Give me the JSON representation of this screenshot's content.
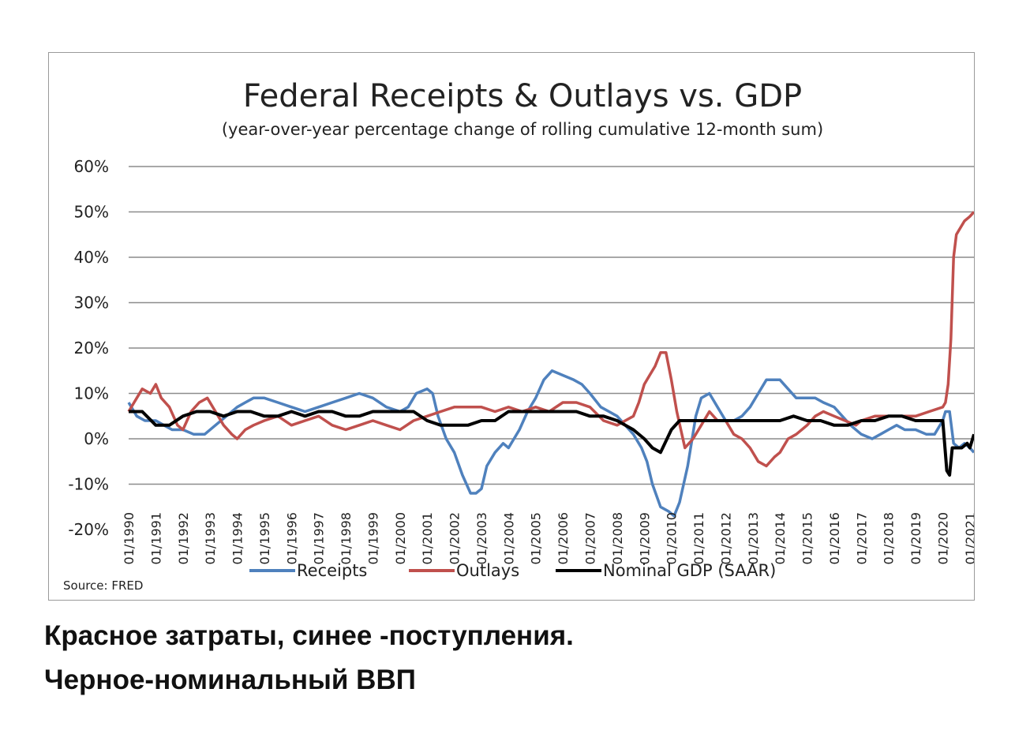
{
  "chart_data": {
    "type": "line",
    "title": "Federal Receipts & Outlays vs. GDP",
    "subtitle": "(year-over-year percentage change of rolling cumulative 12-month sum)",
    "ylim": [
      -20,
      60
    ],
    "yticks": [
      -20,
      -10,
      0,
      10,
      20,
      30,
      40,
      50,
      60
    ],
    "ytick_labels": [
      "-20%",
      "-10%",
      "0%",
      "10%",
      "20%",
      "30%",
      "40%",
      "50%",
      "60%"
    ],
    "xlim": [
      1990,
      2021.15
    ],
    "xtick_labels": [
      "01/1990",
      "01/1991",
      "01/1992",
      "01/1993",
      "01/1994",
      "01/1995",
      "01/1996",
      "01/1997",
      "01/1998",
      "01/1999",
      "01/2000",
      "01/2001",
      "01/2002",
      "01/2003",
      "01/2004",
      "01/2005",
      "01/2006",
      "01/2007",
      "01/2008",
      "01/2009",
      "01/2010",
      "01/2011",
      "01/2012",
      "01/2013",
      "01/2014",
      "01/2015",
      "01/2016",
      "01/2017",
      "01/2018",
      "01/2019",
      "01/2020",
      "01/2021"
    ],
    "grid": true,
    "legend_position": "bottom",
    "series": [
      {
        "name": "Receipts",
        "color": "#4f81bd",
        "x": [
          1990,
          1990.3,
          1990.6,
          1991,
          1991.3,
          1991.6,
          1992,
          1992.4,
          1992.8,
          1993.2,
          1993.6,
          1994,
          1994.3,
          1994.6,
          1995,
          1995.5,
          1996,
          1996.5,
          1997,
          1997.5,
          1998,
          1998.5,
          1999,
          1999.5,
          2000,
          2000.3,
          2000.6,
          2001,
          2001.2,
          2001.4,
          2001.7,
          2002,
          2002.3,
          2002.6,
          2002.8,
          2003,
          2003.2,
          2003.5,
          2003.8,
          2004,
          2004.4,
          2004.7,
          2005,
          2005.3,
          2005.6,
          2006,
          2006.4,
          2006.7,
          2007,
          2007.4,
          2007.7,
          2008,
          2008.3,
          2008.6,
          2008.9,
          2009.1,
          2009.3,
          2009.6,
          2009.9,
          2010.1,
          2010.3,
          2010.6,
          2010.9,
          2011.1,
          2011.4,
          2011.7,
          2012,
          2012.3,
          2012.6,
          2012.9,
          2013.2,
          2013.5,
          2013.8,
          2014,
          2014.3,
          2014.6,
          2015,
          2015.3,
          2015.6,
          2016,
          2016.3,
          2016.6,
          2017,
          2017.4,
          2017.7,
          2018,
          2018.3,
          2018.6,
          2019,
          2019.4,
          2019.7,
          2020,
          2020.1,
          2020.25,
          2020.4,
          2020.6,
          2020.8,
          2021,
          2021.15
        ],
        "y": [
          8,
          5,
          4,
          4,
          3,
          2,
          2,
          1,
          1,
          3,
          5,
          7,
          8,
          9,
          9,
          8,
          7,
          6,
          7,
          8,
          9,
          10,
          9,
          7,
          6,
          7,
          10,
          11,
          10,
          5,
          0,
          -3,
          -8,
          -12,
          -12,
          -11,
          -6,
          -3,
          -1,
          -2,
          2,
          6,
          9,
          13,
          15,
          14,
          13,
          12,
          10,
          7,
          6,
          5,
          3,
          1,
          -2,
          -5,
          -10,
          -15,
          -16,
          -17,
          -14,
          -6,
          5,
          9,
          10,
          7,
          4,
          4,
          5,
          7,
          10,
          13,
          13,
          13,
          11,
          9,
          9,
          9,
          8,
          7,
          5,
          3,
          1,
          0,
          1,
          2,
          3,
          2,
          2,
          1,
          1,
          4,
          6,
          6,
          -1,
          -2,
          -1,
          -2,
          -3
        ]
      },
      {
        "name": "Outlays",
        "color": "#c0504d",
        "x": [
          1990,
          1990.2,
          1990.5,
          1990.8,
          1991,
          1991.2,
          1991.5,
          1991.8,
          1992,
          1992.3,
          1992.6,
          1992.9,
          1993.2,
          1993.5,
          1993.8,
          1994,
          1994.3,
          1994.6,
          1995,
          1995.5,
          1996,
          1996.5,
          1997,
          1997.5,
          1998,
          1998.5,
          1999,
          1999.5,
          2000,
          2000.5,
          2001,
          2001.5,
          2002,
          2002.5,
          2003,
          2003.5,
          2004,
          2004.5,
          2005,
          2005.5,
          2006,
          2006.5,
          2007,
          2007.5,
          2008,
          2008.3,
          2008.6,
          2008.8,
          2009,
          2009.2,
          2009.4,
          2009.6,
          2009.8,
          2010,
          2010.2,
          2010.5,
          2010.8,
          2011.1,
          2011.4,
          2011.7,
          2012,
          2012.3,
          2012.6,
          2012.9,
          2013.2,
          2013.5,
          2013.8,
          2014,
          2014.3,
          2014.6,
          2015,
          2015.3,
          2015.6,
          2016,
          2016.4,
          2016.8,
          2017,
          2017.5,
          2018,
          2018.5,
          2019,
          2019.5,
          2020,
          2020.1,
          2020.2,
          2020.3,
          2020.4,
          2020.5,
          2020.6,
          2020.8,
          2021,
          2021.15
        ],
        "y": [
          6,
          8,
          11,
          10,
          12,
          9,
          7,
          3,
          2,
          6,
          8,
          9,
          6,
          3,
          1,
          0,
          2,
          3,
          4,
          5,
          3,
          4,
          5,
          3,
          2,
          3,
          4,
          3,
          2,
          4,
          5,
          6,
          7,
          7,
          7,
          6,
          7,
          6,
          7,
          6,
          8,
          8,
          7,
          4,
          3,
          4,
          5,
          8,
          12,
          14,
          16,
          19,
          19,
          13,
          6,
          -2,
          0,
          3,
          6,
          4,
          4,
          1,
          0,
          -2,
          -5,
          -6,
          -4,
          -3,
          0,
          1,
          3,
          5,
          6,
          5,
          4,
          3,
          4,
          5,
          5,
          5,
          5,
          6,
          7,
          8,
          12,
          22,
          40,
          45,
          46,
          48,
          49,
          50
        ]
      },
      {
        "name": "Nominal GDP (SAAR)",
        "color": "#000000",
        "x": [
          1990,
          1990.5,
          1991,
          1991.5,
          1992,
          1992.5,
          1993,
          1993.5,
          1994,
          1994.5,
          1995,
          1995.5,
          1996,
          1996.5,
          1997,
          1997.5,
          1998,
          1998.5,
          1999,
          1999.5,
          2000,
          2000.5,
          2001,
          2001.5,
          2002,
          2002.5,
          2003,
          2003.5,
          2004,
          2004.5,
          2005,
          2005.5,
          2006,
          2006.5,
          2007,
          2007.5,
          2008,
          2008.3,
          2008.6,
          2009,
          2009.3,
          2009.6,
          2010,
          2010.3,
          2010.6,
          2011,
          2011.5,
          2012,
          2012.5,
          2013,
          2013.5,
          2014,
          2014.5,
          2015,
          2015.5,
          2016,
          2016.5,
          2017,
          2017.5,
          2018,
          2018.5,
          2019,
          2019.5,
          2020,
          2020.15,
          2020.25,
          2020.35,
          2020.5,
          2020.7,
          2020.9,
          2021,
          2021.15
        ],
        "y": [
          6,
          6,
          3,
          3,
          5,
          6,
          6,
          5,
          6,
          6,
          5,
          5,
          6,
          5,
          6,
          6,
          5,
          5,
          6,
          6,
          6,
          6,
          4,
          3,
          3,
          3,
          4,
          4,
          6,
          6,
          6,
          6,
          6,
          6,
          5,
          5,
          4,
          3,
          2,
          0,
          -2,
          -3,
          2,
          4,
          4,
          4,
          4,
          4,
          4,
          4,
          4,
          4,
          5,
          4,
          4,
          3,
          3,
          4,
          4,
          5,
          5,
          4,
          4,
          4,
          -7,
          -8,
          -2,
          -2,
          -2,
          -1,
          -2,
          1
        ]
      }
    ],
    "source": "Source: FRED"
  },
  "caption": {
    "line1": "Красное затраты, синее -поступления.",
    "line2": "Черное-номинальный ВВП"
  }
}
